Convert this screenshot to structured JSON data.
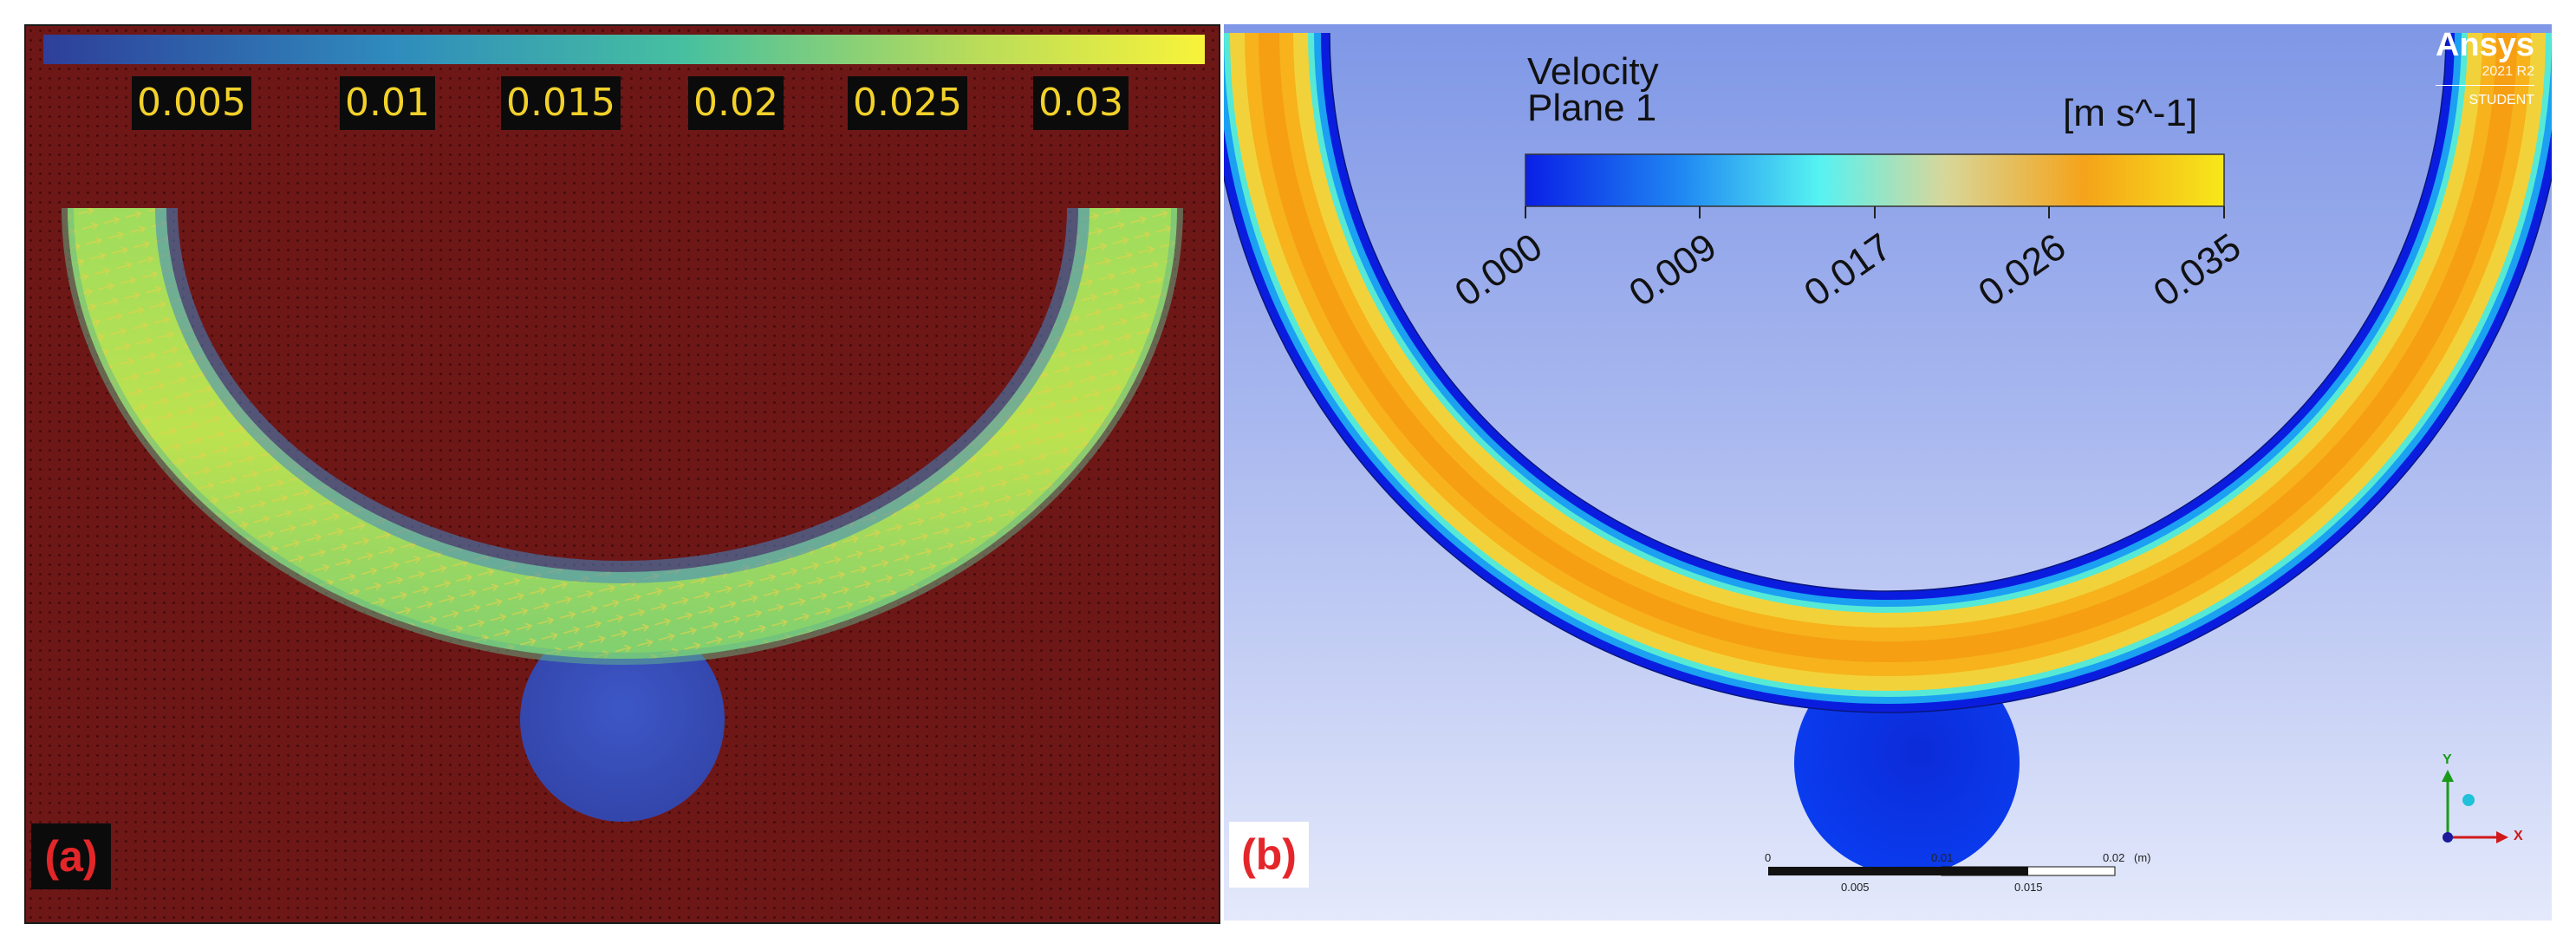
{
  "panel_a": {
    "label": "(a)",
    "colorbar_ticks": [
      "0.005",
      "0.01",
      "0.015",
      "0.02",
      "0.025",
      "0.03"
    ]
  },
  "panel_b": {
    "label": "(b)",
    "legend_title": "Velocity",
    "legend_subtitle": "Plane 1",
    "legend_unit": "[m s^-1]",
    "colorbar_ticks": [
      "0.000",
      "0.009",
      "0.017",
      "0.026",
      "0.035"
    ],
    "brand": "Ansys",
    "version": "2021 R2",
    "edition": "STUDENT",
    "scale_labels": [
      "0",
      "0.01",
      "0.02",
      "(m)",
      "0.005",
      "0.015"
    ],
    "axis_labels": [
      "Y",
      "X"
    ]
  },
  "colors": {
    "dark_red_bg": "#6e1717",
    "label_yellow": "#f2d12a",
    "tag_red": "#e4262a"
  }
}
